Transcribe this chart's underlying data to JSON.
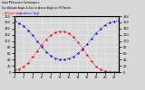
{
  "title": "Solar PV/Inverter Performance  Sun Altitude Angle & Sun Incidence Angle on PV Panels",
  "legend1": "-- Altitude (deg)",
  "legend2": "-- Incidence (deg)",
  "bg_color": "#d8d8d8",
  "plot_bg": "#d8d8d8",
  "grid_color": "#ffffff",
  "blue_color": "#0000dd",
  "red_color": "#dd0000",
  "ylim_left": [
    0,
    180
  ],
  "ylim_right": [
    0,
    180
  ],
  "yticks_left": [
    0,
    20,
    40,
    60,
    80,
    100,
    120,
    140,
    160,
    180
  ],
  "yticks_right": [
    0,
    20,
    40,
    60,
    80,
    100,
    120,
    140,
    160,
    180
  ],
  "xlim": [
    0,
    23
  ],
  "xticks": [
    0,
    2,
    4,
    6,
    8,
    10,
    12,
    14,
    16,
    18,
    20,
    22
  ],
  "blue_x": [
    0,
    1,
    2,
    3,
    4,
    5,
    6,
    7,
    8,
    9,
    10,
    11,
    12,
    13,
    14,
    15,
    16,
    17,
    18,
    19,
    20,
    21,
    22,
    23
  ],
  "blue_y": [
    165,
    158,
    148,
    135,
    118,
    100,
    82,
    65,
    52,
    44,
    40,
    40,
    44,
    50,
    60,
    74,
    90,
    108,
    126,
    140,
    152,
    160,
    164,
    165
  ],
  "red_x": [
    0,
    1,
    2,
    3,
    4,
    5,
    6,
    7,
    8,
    9,
    10,
    11,
    12,
    13,
    14,
    15,
    16,
    17,
    18,
    19,
    20,
    21,
    22,
    23
  ],
  "red_y": [
    5,
    10,
    18,
    30,
    48,
    68,
    88,
    105,
    118,
    128,
    132,
    130,
    124,
    112,
    96,
    76,
    55,
    35,
    18,
    8,
    2,
    0,
    0,
    0
  ]
}
